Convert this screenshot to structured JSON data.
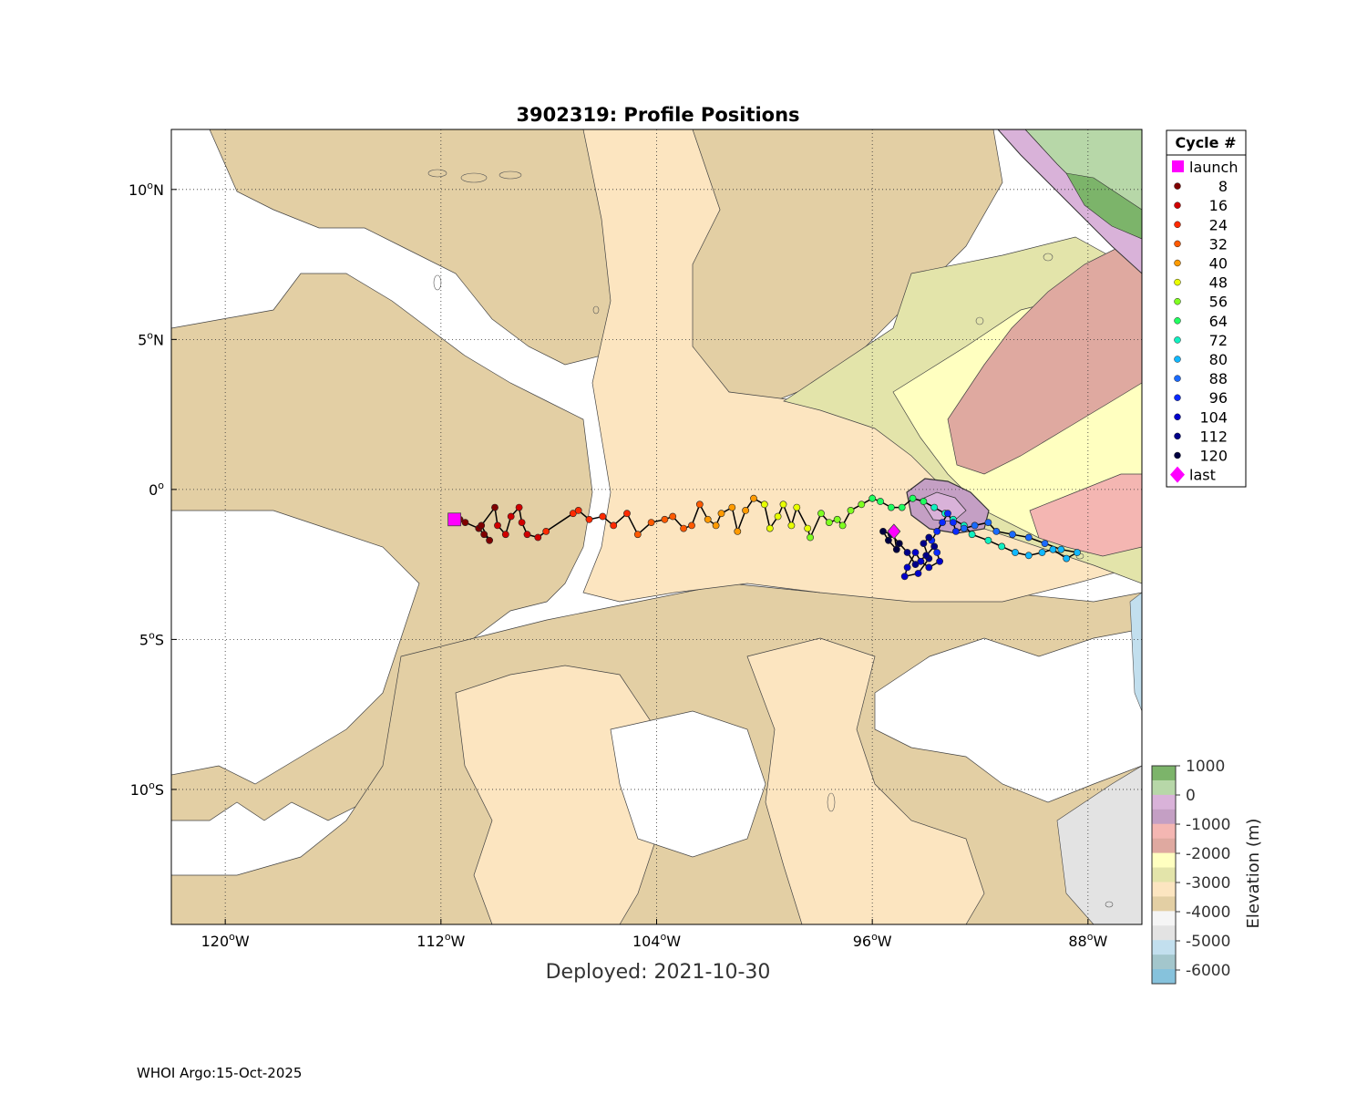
{
  "title": "3902319: Profile Positions",
  "deployed_label": "Deployed: 2021-10-30",
  "footer": "WHOI Argo:15-Oct-2025",
  "map": {
    "lon_range": [
      -122,
      -86
    ],
    "lat_range": [
      -14.5,
      12
    ]
  },
  "axes": {
    "lon_ticks": [
      {
        "value": -120,
        "num": "120",
        "hemi": "W"
      },
      {
        "value": -112,
        "num": "112",
        "hemi": "W"
      },
      {
        "value": -104,
        "num": "104",
        "hemi": "W"
      },
      {
        "value": -96,
        "num": "96",
        "hemi": "W"
      },
      {
        "value": -88,
        "num": "88",
        "hemi": "W"
      }
    ],
    "lat_ticks": [
      {
        "value": 10,
        "num": "10",
        "hemi": "N"
      },
      {
        "value": 5,
        "num": "5",
        "hemi": "N"
      },
      {
        "value": 0,
        "num": "0",
        "hemi": ""
      },
      {
        "value": -5,
        "num": "5",
        "hemi": "S"
      },
      {
        "value": -10,
        "num": "10",
        "hemi": "S"
      }
    ]
  },
  "legend": {
    "title": "Cycle #",
    "items": [
      {
        "label": "launch",
        "marker": "square",
        "color": "#ff00ff"
      },
      {
        "label": "8",
        "marker": "dot",
        "color": "#7f0000"
      },
      {
        "label": "16",
        "marker": "dot",
        "color": "#d00000"
      },
      {
        "label": "24",
        "marker": "dot",
        "color": "#ff2a00"
      },
      {
        "label": "32",
        "marker": "dot",
        "color": "#ff5a00"
      },
      {
        "label": "40",
        "marker": "dot",
        "color": "#ff9a00"
      },
      {
        "label": "48",
        "marker": "dot",
        "color": "#e8ff00"
      },
      {
        "label": "56",
        "marker": "dot",
        "color": "#80ff20"
      },
      {
        "label": "64",
        "marker": "dot",
        "color": "#20ff60"
      },
      {
        "label": "72",
        "marker": "dot",
        "color": "#10f0c0"
      },
      {
        "label": "80",
        "marker": "dot",
        "color": "#10b8ff"
      },
      {
        "label": "88",
        "marker": "dot",
        "color": "#1a6aff"
      },
      {
        "label": "96",
        "marker": "dot",
        "color": "#0a2aff"
      },
      {
        "label": "104",
        "marker": "dot",
        "color": "#0000cc"
      },
      {
        "label": "112",
        "marker": "dot",
        "color": "#000088"
      },
      {
        "label": "120",
        "marker": "dot",
        "color": "#000040"
      },
      {
        "label": "last",
        "marker": "diamond",
        "color": "#ff00ff"
      }
    ]
  },
  "colorbar": {
    "title": "Elevation (m)",
    "labels": [
      "1000",
      "0",
      "-1000",
      "-2000",
      "-3000",
      "-4000",
      "-5000",
      "-6000"
    ],
    "bands": [
      "#7cb46a",
      "#b7d7a8",
      "#d9b2d9",
      "#c49fc4",
      "#f4b6b2",
      "#dfa9a0",
      "#ffffc0",
      "#e3e4aa",
      "#fce5c0",
      "#e3cfa4",
      "#f5f5f5",
      "#e3e3e3",
      "#c2dfee",
      "#a3c6cc",
      "#86c2dc"
    ]
  },
  "trajectory": [
    {
      "lon": -111.3,
      "lat": -1.0
    },
    {
      "lon": -111.1,
      "lat": -1.1
    },
    {
      "lon": -110.6,
      "lat": -1.3
    },
    {
      "lon": -110.4,
      "lat": -1.5
    },
    {
      "lon": -110.2,
      "lat": -1.7
    },
    {
      "lon": -110.5,
      "lat": -1.2
    },
    {
      "lon": -110.0,
      "lat": -0.6
    },
    {
      "lon": -109.9,
      "lat": -1.2
    },
    {
      "lon": -109.6,
      "lat": -1.5
    },
    {
      "lon": -109.4,
      "lat": -0.9
    },
    {
      "lon": -109.1,
      "lat": -0.6
    },
    {
      "lon": -109.0,
      "lat": -1.1
    },
    {
      "lon": -108.8,
      "lat": -1.5
    },
    {
      "lon": -108.4,
      "lat": -1.6
    },
    {
      "lon": -108.1,
      "lat": -1.4
    },
    {
      "lon": -107.1,
      "lat": -0.8
    },
    {
      "lon": -106.9,
      "lat": -0.7
    },
    {
      "lon": -106.5,
      "lat": -1.0
    },
    {
      "lon": -106.0,
      "lat": -0.9
    },
    {
      "lon": -105.6,
      "lat": -1.2
    },
    {
      "lon": -105.1,
      "lat": -0.8
    },
    {
      "lon": -104.7,
      "lat": -1.5
    },
    {
      "lon": -104.2,
      "lat": -1.1
    },
    {
      "lon": -103.7,
      "lat": -1.0
    },
    {
      "lon": -103.4,
      "lat": -0.9
    },
    {
      "lon": -103.0,
      "lat": -1.3
    },
    {
      "lon": -102.7,
      "lat": -1.2
    },
    {
      "lon": -102.4,
      "lat": -0.5
    },
    {
      "lon": -102.1,
      "lat": -1.0
    },
    {
      "lon": -101.8,
      "lat": -1.2
    },
    {
      "lon": -101.6,
      "lat": -0.8
    },
    {
      "lon": -101.2,
      "lat": -0.6
    },
    {
      "lon": -101.0,
      "lat": -1.4
    },
    {
      "lon": -100.7,
      "lat": -0.7
    },
    {
      "lon": -100.4,
      "lat": -0.3
    },
    {
      "lon": -100.0,
      "lat": -0.5
    },
    {
      "lon": -99.8,
      "lat": -1.3
    },
    {
      "lon": -99.5,
      "lat": -0.9
    },
    {
      "lon": -99.3,
      "lat": -0.5
    },
    {
      "lon": -99.0,
      "lat": -1.2
    },
    {
      "lon": -98.8,
      "lat": -0.6
    },
    {
      "lon": -98.4,
      "lat": -1.3
    },
    {
      "lon": -98.3,
      "lat": -1.6
    },
    {
      "lon": -97.9,
      "lat": -0.8
    },
    {
      "lon": -97.6,
      "lat": -1.1
    },
    {
      "lon": -97.3,
      "lat": -1.0
    },
    {
      "lon": -97.1,
      "lat": -1.2
    },
    {
      "lon": -96.8,
      "lat": -0.7
    },
    {
      "lon": -96.4,
      "lat": -0.5
    },
    {
      "lon": -96.0,
      "lat": -0.3
    },
    {
      "lon": -95.7,
      "lat": -0.4
    },
    {
      "lon": -95.3,
      "lat": -0.6
    },
    {
      "lon": -94.9,
      "lat": -0.6
    },
    {
      "lon": -94.5,
      "lat": -0.3
    },
    {
      "lon": -94.1,
      "lat": -0.4
    },
    {
      "lon": -93.7,
      "lat": -0.6
    },
    {
      "lon": -93.3,
      "lat": -0.8
    },
    {
      "lon": -93.0,
      "lat": -1.0
    },
    {
      "lon": -92.6,
      "lat": -1.2
    },
    {
      "lon": -92.3,
      "lat": -1.5
    },
    {
      "lon": -91.7,
      "lat": -1.7
    },
    {
      "lon": -91.2,
      "lat": -1.9
    },
    {
      "lon": -90.7,
      "lat": -2.1
    },
    {
      "lon": -90.2,
      "lat": -2.2
    },
    {
      "lon": -89.7,
      "lat": -2.1
    },
    {
      "lon": -89.3,
      "lat": -2.0
    },
    {
      "lon": -88.8,
      "lat": -2.3
    },
    {
      "lon": -88.4,
      "lat": -2.1
    },
    {
      "lon": -89.0,
      "lat": -2.0
    },
    {
      "lon": -89.6,
      "lat": -1.8
    },
    {
      "lon": -90.2,
      "lat": -1.6
    },
    {
      "lon": -90.8,
      "lat": -1.5
    },
    {
      "lon": -91.4,
      "lat": -1.4
    },
    {
      "lon": -91.7,
      "lat": -1.1
    },
    {
      "lon": -92.2,
      "lat": -1.2
    },
    {
      "lon": -92.6,
      "lat": -1.3
    },
    {
      "lon": -92.9,
      "lat": -1.4
    },
    {
      "lon": -93.0,
      "lat": -1.1
    },
    {
      "lon": -93.2,
      "lat": -0.8
    },
    {
      "lon": -93.4,
      "lat": -1.1
    },
    {
      "lon": -93.6,
      "lat": -1.4
    },
    {
      "lon": -93.8,
      "lat": -1.7
    },
    {
      "lon": -93.6,
      "lat": -2.1
    },
    {
      "lon": -93.5,
      "lat": -2.4
    },
    {
      "lon": -93.9,
      "lat": -2.6
    },
    {
      "lon": -94.2,
      "lat": -2.4
    },
    {
      "lon": -94.4,
      "lat": -2.1
    },
    {
      "lon": -94.7,
      "lat": -2.6
    },
    {
      "lon": -94.8,
      "lat": -2.9
    },
    {
      "lon": -94.3,
      "lat": -2.8
    },
    {
      "lon": -93.9,
      "lat": -2.3
    },
    {
      "lon": -94.1,
      "lat": -1.8
    },
    {
      "lon": -93.9,
      "lat": -1.6
    },
    {
      "lon": -93.7,
      "lat": -1.9
    },
    {
      "lon": -94.0,
      "lat": -2.2
    },
    {
      "lon": -94.4,
      "lat": -2.5
    },
    {
      "lon": -94.7,
      "lat": -2.1
    },
    {
      "lon": -95.0,
      "lat": -1.8
    },
    {
      "lon": -95.3,
      "lat": -1.5
    },
    {
      "lon": -95.6,
      "lat": -1.4
    },
    {
      "lon": -95.4,
      "lat": -1.7
    },
    {
      "lon": -95.1,
      "lat": -2.0
    },
    {
      "lon": -95.2,
      "lat": -1.4
    }
  ],
  "launch": {
    "lon": -111.5,
    "lat": -1.0
  },
  "last": {
    "lon": -95.2,
    "lat": -1.4
  }
}
